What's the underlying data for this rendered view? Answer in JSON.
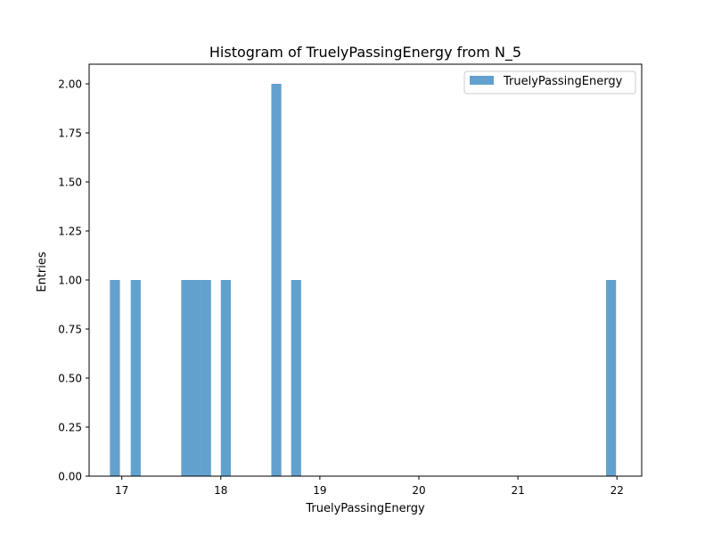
{
  "chart_data": {
    "type": "bar",
    "title": "Histogram of TruelyPassingEnergy from N_5",
    "xlabel": "TruelyPassingEnergy",
    "ylabel": "Entries",
    "xlim": [
      16.67,
      22.25
    ],
    "ylim": [
      0,
      2.1
    ],
    "xticks": [
      17,
      18,
      19,
      20,
      21,
      22
    ],
    "xtick_labels": [
      "17",
      "18",
      "19",
      "20",
      "21",
      "22"
    ],
    "yticks": [
      0,
      0.25,
      0.5,
      0.75,
      1.0,
      1.25,
      1.5,
      1.75,
      2.0
    ],
    "ytick_labels": [
      "0.00",
      "0.25",
      "0.50",
      "0.75",
      "1.00",
      "1.25",
      "1.50",
      "1.75",
      "2.00"
    ],
    "bin_width": 0.101,
    "bars": [
      {
        "x0": 16.88,
        "value": 1
      },
      {
        "x0": 17.09,
        "value": 1
      },
      {
        "x0": 17.6,
        "value": 1
      },
      {
        "x0": 17.7,
        "value": 1
      },
      {
        "x0": 17.8,
        "value": 1
      },
      {
        "x0": 18.0,
        "value": 1
      },
      {
        "x0": 18.51,
        "value": 2
      },
      {
        "x0": 18.71,
        "value": 1
      },
      {
        "x0": 21.89,
        "value": 1
      }
    ],
    "series": [
      {
        "name": "TruelyPassingEnergy",
        "color": "#5f9fcd"
      }
    ],
    "legend": "top-right",
    "grid": false
  }
}
